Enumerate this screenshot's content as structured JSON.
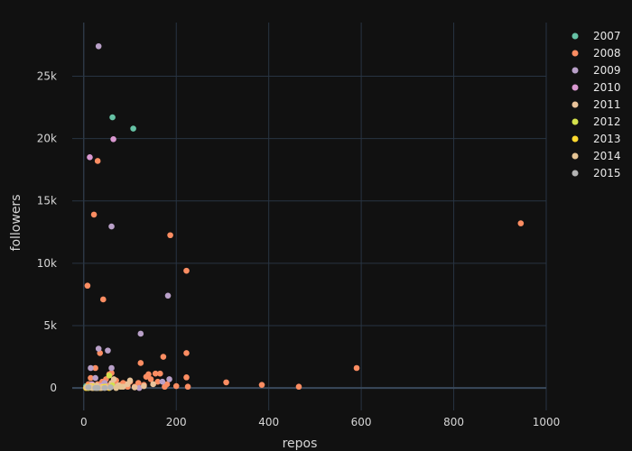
{
  "chart_data": {
    "type": "scatter",
    "xlabel": "repos",
    "ylabel": "followers",
    "xlim": [
      -25,
      1000
    ],
    "ylim": [
      -1800,
      29300
    ],
    "x_ticks": [
      0,
      200,
      400,
      600,
      800,
      1000
    ],
    "x_tick_labels": [
      "0",
      "200",
      "400",
      "600",
      "800",
      "1000"
    ],
    "y_ticks": [
      0,
      5000,
      10000,
      15000,
      20000,
      25000
    ],
    "y_tick_labels": [
      "0",
      "5k",
      "10k",
      "15k",
      "20k",
      "25k"
    ],
    "grid": true,
    "legend_position": "top-right",
    "series": [
      {
        "name": "2007",
        "color": "#66c2a5",
        "points": [
          [
            62,
            21700
          ],
          [
            107,
            20800
          ],
          [
            5,
            150
          ],
          [
            12,
            300
          ],
          [
            18,
            80
          ]
        ]
      },
      {
        "name": "2008",
        "color": "#fc8d62",
        "points": [
          [
            945,
            13200
          ],
          [
            187,
            12250
          ],
          [
            222,
            9400
          ],
          [
            8,
            8200
          ],
          [
            42,
            7100
          ],
          [
            22,
            13900
          ],
          [
            30,
            18200
          ],
          [
            590,
            1600
          ],
          [
            222,
            2800
          ],
          [
            172,
            2500
          ],
          [
            123,
            2000
          ],
          [
            222,
            850
          ],
          [
            308,
            450
          ],
          [
            385,
            250
          ],
          [
            465,
            100
          ],
          [
            225,
            100
          ],
          [
            175,
            100
          ],
          [
            165,
            1150
          ],
          [
            155,
            1150
          ],
          [
            140,
            1100
          ],
          [
            135,
            900
          ],
          [
            118,
            400
          ],
          [
            100,
            500
          ],
          [
            90,
            300
          ],
          [
            80,
            250
          ],
          [
            70,
            600
          ],
          [
            55,
            1100
          ],
          [
            48,
            700
          ],
          [
            35,
            2800
          ],
          [
            25,
            1600
          ],
          [
            15,
            800
          ],
          [
            10,
            300
          ],
          [
            30,
            300
          ],
          [
            40,
            500
          ],
          [
            60,
            1200
          ],
          [
            65,
            300
          ],
          [
            75,
            150
          ],
          [
            145,
            700
          ],
          [
            160,
            500
          ],
          [
            130,
            250
          ],
          [
            110,
            100
          ],
          [
            180,
            300
          ],
          [
            200,
            150
          ],
          [
            85,
            400
          ],
          [
            95,
            100
          ],
          [
            50,
            200
          ],
          [
            20,
            100
          ]
        ]
      },
      {
        "name": "2009",
        "color": "#b9a0c8",
        "points": [
          [
            32,
            27400
          ],
          [
            60,
            12950
          ],
          [
            182,
            7400
          ],
          [
            123,
            4350
          ],
          [
            32,
            3150
          ],
          [
            52,
            3000
          ],
          [
            15,
            1600
          ],
          [
            60,
            1600
          ],
          [
            185,
            700
          ],
          [
            170,
            500
          ],
          [
            120,
            0
          ],
          [
            40,
            200
          ],
          [
            70,
            100
          ],
          [
            25,
            800
          ],
          [
            45,
            400
          ]
        ]
      },
      {
        "name": "2010",
        "color": "#d998d0",
        "points": [
          [
            13,
            18500
          ],
          [
            64,
            19950
          ],
          [
            18,
            300
          ],
          [
            35,
            150
          ],
          [
            50,
            50
          ]
        ]
      },
      {
        "name": "2011",
        "color": "#e9c39a",
        "points": [
          [
            85,
            100
          ],
          [
            95,
            300
          ],
          [
            100,
            600
          ],
          [
            40,
            100
          ],
          [
            30,
            50
          ],
          [
            60,
            400
          ],
          [
            75,
            200
          ],
          [
            130,
            150
          ],
          [
            150,
            300
          ],
          [
            110,
            50
          ],
          [
            20,
            200
          ],
          [
            65,
            700
          ]
        ]
      },
      {
        "name": "2012",
        "color": "#d4e24c",
        "points": [
          [
            55,
            1000
          ],
          [
            45,
            100
          ],
          [
            30,
            50
          ],
          [
            10,
            0
          ],
          [
            62,
            200
          ],
          [
            25,
            150
          ]
        ]
      },
      {
        "name": "2013",
        "color": "#ffd92f",
        "points": [
          [
            5,
            0
          ],
          [
            12,
            50
          ],
          [
            20,
            0
          ],
          [
            35,
            0
          ],
          [
            48,
            100
          ],
          [
            55,
            0
          ],
          [
            8,
            100
          ],
          [
            15,
            150
          ],
          [
            28,
            0
          ],
          [
            40,
            50
          ]
        ]
      },
      {
        "name": "2014",
        "color": "#e5c494",
        "points": [
          [
            6,
            50
          ],
          [
            18,
            0
          ],
          [
            28,
            200
          ],
          [
            38,
            0
          ],
          [
            50,
            50
          ],
          [
            70,
            0
          ],
          [
            80,
            100
          ],
          [
            14,
            100
          ]
        ]
      },
      {
        "name": "2015",
        "color": "#b3b3b3",
        "points": [
          [
            30,
            0
          ],
          [
            45,
            0
          ],
          [
            58,
            50
          ],
          [
            25,
            0
          ],
          [
            10,
            50
          ]
        ]
      }
    ]
  }
}
